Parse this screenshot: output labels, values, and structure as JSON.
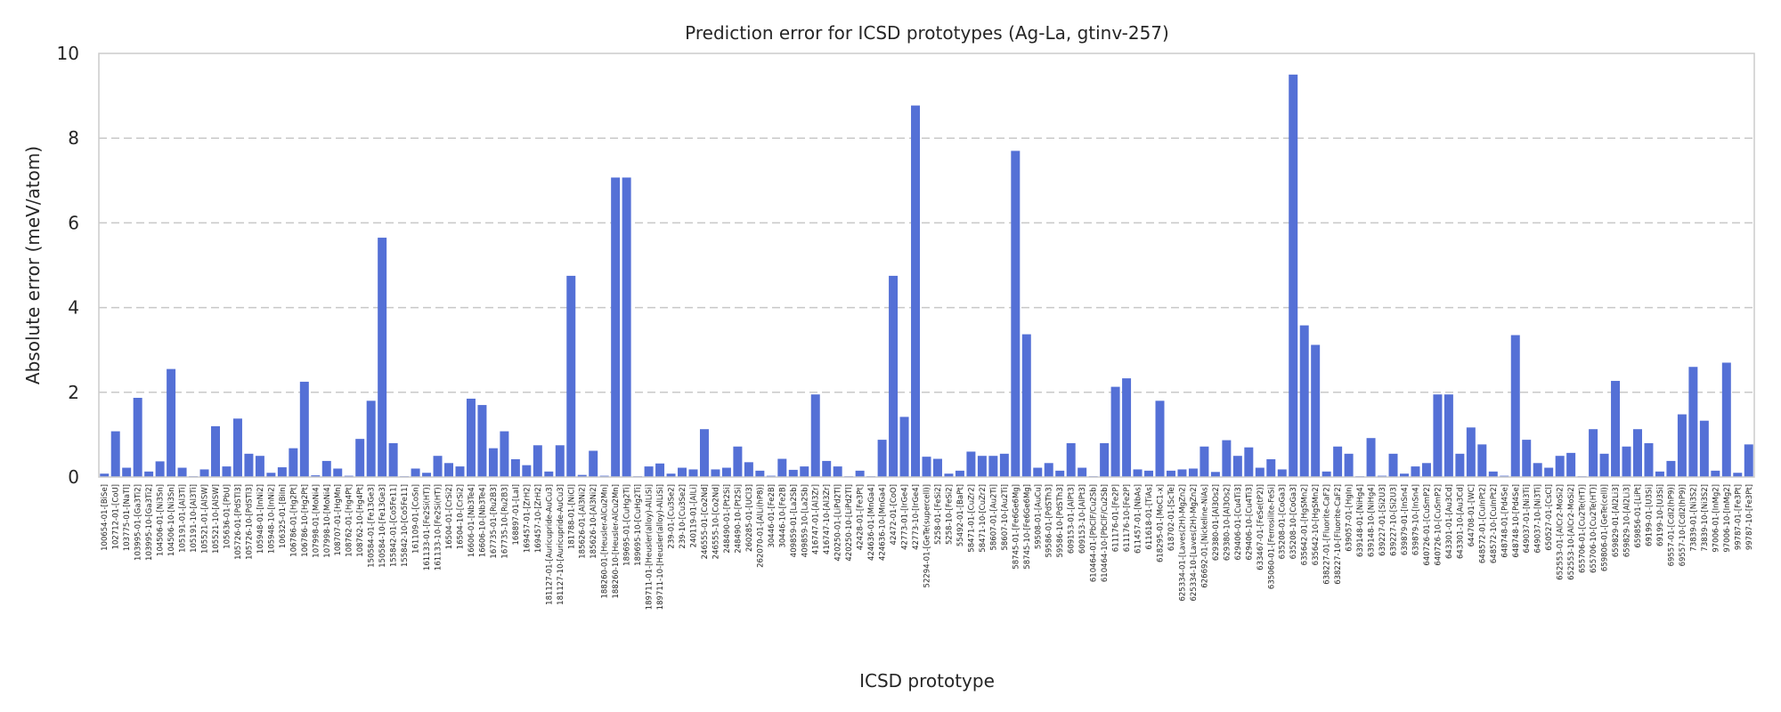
{
  "chart_data": {
    "type": "bar",
    "title": "Prediction error for ICSD prototypes (Ag-La, gtinv-257)",
    "xlabel": "ICSD prototype",
    "ylabel": "Absolute error (meV/atom)",
    "ylim": [
      0,
      10
    ],
    "yticks": [
      0,
      2,
      4,
      6,
      8,
      10
    ],
    "grid": "horizontal dashed",
    "bar_color": "#5470d6",
    "categories": [
      "100654-01-[BiSe]",
      "102712-01-[CoU]",
      "103775-01-[NaTl]",
      "103995-01-[Ga3Ti2]",
      "103995-10-[Ga3Ti2]",
      "104506-01-[Ni3Sn]",
      "104506-10-[Ni3Sn]",
      "105191-01-[Al3Ti]",
      "105191-10-[Al3Ti]",
      "105521-01-[AlSW]",
      "105521-10-[AlSW]",
      "105636-01-[PbU]",
      "105726-01-[PdSTl3]",
      "105726-10-[PdSTl3]",
      "105948-01-[InNi2]",
      "105948-10-[InNi2]",
      "106325-01-[BiIn]",
      "106786-01-[Hg2Pt]",
      "106786-10-[Hg2Pt]",
      "107998-01-[MoNi4]",
      "107998-10-[MoNi4]",
      "108707-01-[HgMn]",
      "108762-01-[Hg4Pt]",
      "108762-10-[Hg4Pt]",
      "150584-01-[Fe13Ge3]",
      "150584-10-[Fe13Ge3]",
      "155842-01-[Co5Fe11]",
      "155842-10-[Co5Fe11]",
      "161109-01-[CoSn]",
      "161133-01-[Fe2Si(HT)]",
      "161133-10-[Fe2Si(HT)]",
      "16504-01-[CrSi2]",
      "16504-10-[CrSi2]",
      "16606-01-[Nb3Te4]",
      "16606-10-[Nb3Te4]",
      "167735-01-[Ru2B3]",
      "167735-10-[Ru2B3]",
      "168897-01-[LaI]",
      "169457-01-[ZrH2]",
      "169457-10-[ZrH2]",
      "181127-01-[Auricupride-AuCu3]",
      "181127-10-[Auricupride-AuCu3]",
      "181788-01-[NiCl]",
      "185626-01-[Al3Ni2]",
      "185626-10-[Al3Ni2]",
      "188260-01-[Heusler-AlCu2Mn]",
      "188260-10-[Heusler-AlCu2Mn]",
      "189695-01-[CuHg2Ti]",
      "189695-10-[CuHg2Ti]",
      "189711-01-[Heusler(alloy)-AlLiSi]",
      "189711-10-[Heusler(alloy)-AlLiSi]",
      "239-01-[Cu3Se2]",
      "239-10-[Cu3Se2]",
      "240119-01-[AlLi]",
      "246555-01-[Co2Nd]",
      "246555-10-[Co2Nd]",
      "248490-01-[Pt2Si]",
      "248490-10-[Pt2Si]",
      "260285-01-[UCl3]",
      "262070-01-[AlLi(hP8)]",
      "30446-01-[Fe2B]",
      "30446-10-[Fe2B]",
      "409859-01-[La2Sb]",
      "409859-10-[La2Sb]",
      "416747-01-[Al3Zr]",
      "416747-10-[Al3Zr]",
      "420250-01-[LiPd2Tl]",
      "420250-10-[LiPd2Tl]",
      "42428-01-[Fe3Pt]",
      "424636-01-[MnGa4]",
      "424636-10-[MnGa4]",
      "42472-01-[CoO]",
      "42773-01-[IrGe4]",
      "42773-10-[IrGe4]",
      "52294-01-[GeTe(supercell)]",
      "5258-01-[FeSi2]",
      "5258-10-[FeSi2]",
      "55492-01-[BaPt]",
      "58471-01-[CuZr2]",
      "58471-10-[CuZr2]",
      "58607-01-[Au2Ti]",
      "58607-10-[Au2Ti]",
      "58745-01-[Fe6Ge6Mg]",
      "58745-10-[Fe6Ge6Mg]",
      "59508-01-[AuCu]",
      "59586-01-[PdSTh3]",
      "59586-10-[PdSTh3]",
      "609153-01-[AlPt3]",
      "609153-10-[AlPt3]",
      "610464-01-[PbClF/Cu2Sb]",
      "610464-10-[PbClF/Cu2Sb]",
      "611176-01-[Fe2P]",
      "611176-10-[Fe2P]",
      "611457-01-[NbAs]",
      "611618-01-[TiAs]",
      "618295-01-[MoC1-x]",
      "618702-01-[ScTe]",
      "625334-01-[Laves(2H)-MgZn2]",
      "625334-10-[Laves(2H)-MgZn2]",
      "626692-01-[Nickeline-NiAs]",
      "629380-01-[Al3Os2]",
      "629380-10-[Al3Os2]",
      "629406-01-[Cu4Ti3]",
      "629406-10-[Cu4Ti3]",
      "633467-01-[FeSe(tP2)]",
      "635060-01-[Ferrosilite-FeSi]",
      "635208-01-[CoGa3]",
      "635208-10-[CoGa3]",
      "635642-01-[HgSMn2]",
      "635642-10-[HgSMn2]",
      "638227-01-[Fluorite-CaF2]",
      "638227-10-[Fluorite-CaF2]",
      "639057-01-[HgIn]",
      "639148-01-[NiHg4]",
      "639148-10-[NiHg4]",
      "639227-01-[Si2U3]",
      "639227-10-[Si2U3]",
      "639879-01-[InSn4]",
      "639879-10-[InSn4]",
      "640726-01-[CuSmP2]",
      "640726-10-[CuSmP2]",
      "643301-01-[Au3Cd]",
      "643301-10-[Au3Cd]",
      "644708-01-[WC]",
      "648572-01-[CuInPt2]",
      "648572-10-[CuInPt2]",
      "648748-01-[Pd4Se]",
      "648748-10-[Pd4Se]",
      "649037-01-[Ni3Ti]",
      "649037-10-[Ni3Ti]",
      "650527-01-[CsCl]",
      "652553-01-[AlCr2-MoSi2]",
      "652553-10-[AlCr2-MoSi2]",
      "655706-01-[Cu2Te(HT)]",
      "655706-10-[Cu2Te(HT)]",
      "659806-01-[GeTe(cell)]",
      "659829-01-[Al2Li3]",
      "659829-10-[Al2Li3]",
      "659856-01-[LiPt]",
      "69199-01-[U3Si]",
      "69199-10-[U3Si]",
      "69557-01-[CdI2(hP9)]",
      "69557-10-[CdI2(hP9)]",
      "73839-01-[Ni3S2]",
      "73839-10-[Ni3S2]",
      "97006-01-[InMg2]",
      "97006-10-[InMg2]",
      "99787-01-[Fe3Pt]",
      "99787-10-[Fe3Pt]"
    ],
    "values": [
      0.08,
      1.08,
      0.22,
      1.87,
      0.13,
      0.37,
      2.55,
      0.22,
      0.02,
      0.18,
      1.2,
      0.25,
      1.38,
      0.55,
      0.5,
      0.1,
      0.23,
      0.68,
      2.25,
      0.04,
      0.38,
      0.2,
      0.03,
      0.9,
      1.8,
      5.65,
      0.8,
      0.02,
      0.2,
      0.1,
      0.5,
      0.33,
      0.25,
      1.85,
      1.7,
      0.68,
      1.08,
      0.42,
      0.28,
      0.75,
      0.13,
      0.75,
      4.75,
      0.05,
      0.62,
      0.03,
      7.07,
      7.07,
      0.02,
      0.25,
      0.32,
      0.08,
      0.22,
      0.18,
      1.13,
      0.18,
      0.22,
      0.72,
      0.35,
      0.15,
      0.03,
      0.43,
      0.17,
      0.25,
      1.95,
      0.38,
      0.25,
      0.02,
      0.15,
      0.02,
      0.88,
      4.75,
      1.42,
      8.77,
      0.48,
      0.43,
      0.08,
      0.15,
      0.6,
      0.5,
      0.5,
      0.55,
      7.7,
      3.37,
      0.22,
      0.33,
      0.15,
      0.8,
      0.22,
      0.02,
      0.8,
      2.13,
      2.33,
      0.18,
      0.15,
      1.8,
      0.15,
      0.18,
      0.2,
      0.72,
      0.12,
      0.87,
      0.5,
      0.7,
      0.22,
      0.42,
      0.18,
      9.5,
      3.58,
      3.12,
      0.13,
      0.72,
      0.55,
      0.02,
      0.92,
      0.03,
      0.55,
      0.08,
      0.25,
      0.33,
      1.95,
      1.95,
      0.55,
      1.17,
      0.77,
      0.13,
      0.03,
      3.35,
      0.88,
      0.33,
      0.22,
      0.5,
      0.57,
      0.02,
      1.13,
      0.55,
      2.27,
      0.72,
      1.13,
      0.8,
      0.13,
      0.38,
      1.48,
      2.6,
      1.33,
      0.15,
      2.7,
      0.1,
      0.77
    ]
  }
}
